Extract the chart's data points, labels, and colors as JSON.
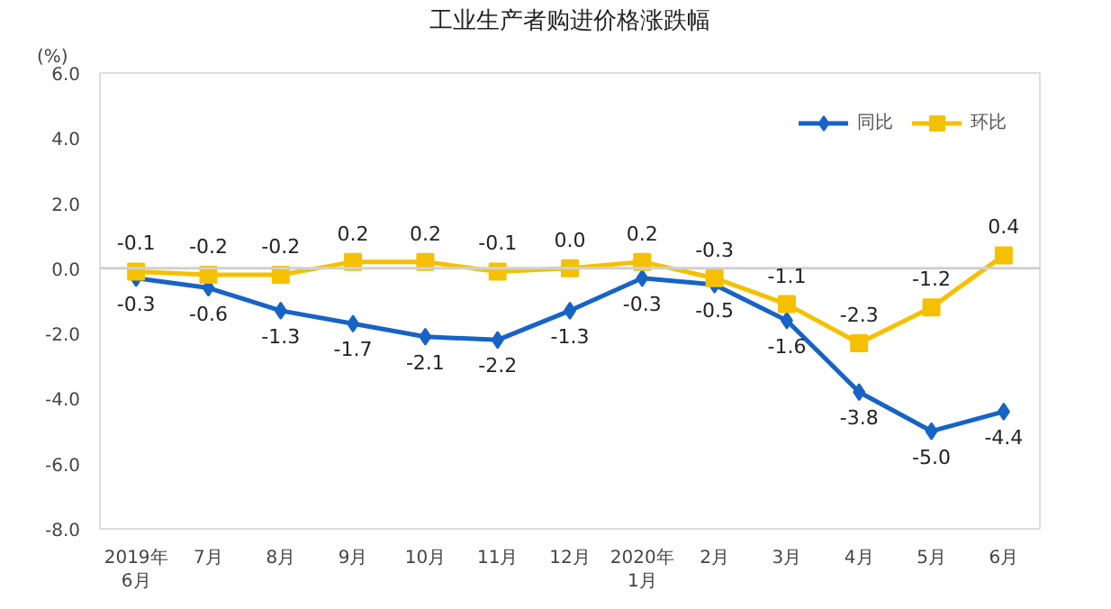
{
  "chart_data": {
    "type": "line",
    "title": "工业生产者购进价格涨跌幅",
    "ylabel": "(%)",
    "categories": [
      "2019年\n6月",
      "7月",
      "8月",
      "9月",
      "10月",
      "11月",
      "12月",
      "2020年\n1月",
      "2月",
      "3月",
      "4月",
      "5月",
      "6月"
    ],
    "series": [
      {
        "name": "同比",
        "color": "#1763c6",
        "marker": "diamond",
        "values": [
          -0.3,
          -0.6,
          -1.3,
          -1.7,
          -2.1,
          -2.2,
          -1.3,
          -0.3,
          -0.5,
          -1.6,
          -3.8,
          -5.0,
          -4.4
        ],
        "value_labels": [
          "-0.3",
          "-0.6",
          "-1.3",
          "-1.7",
          "-2.1",
          "-2.2",
          "-1.3",
          "-0.3",
          "-0.5",
          "-1.6",
          "-3.8",
          "-5.0",
          "-4.4"
        ]
      },
      {
        "name": "环比",
        "color": "#f5c000",
        "marker": "square",
        "values": [
          -0.1,
          -0.2,
          -0.2,
          0.2,
          0.2,
          -0.1,
          0.0,
          0.2,
          -0.3,
          -1.1,
          -2.3,
          -1.2,
          0.4
        ],
        "value_labels": [
          "-0.1",
          "-0.2",
          "-0.2",
          "0.2",
          "0.2",
          "-0.1",
          "0.0",
          "0.2",
          "-0.3",
          "-1.1",
          "-2.3",
          "-1.2",
          "0.4"
        ]
      }
    ],
    "ylim": [
      -8.0,
      6.0
    ],
    "yticks": [
      {
        "value": -8,
        "label": "-8.0"
      },
      {
        "value": -6,
        "label": "-6.0"
      },
      {
        "value": -4,
        "label": "-4.0"
      },
      {
        "value": -2,
        "label": "-2.0"
      },
      {
        "value": 0,
        "label": "0.0"
      },
      {
        "value": 2,
        "label": "2.0"
      },
      {
        "value": 4,
        "label": "4.0"
      },
      {
        "value": 6,
        "label": "6.0"
      }
    ],
    "ref_lines": [
      {
        "axis": "y",
        "value": 0,
        "color": "#d0d0d0"
      }
    ],
    "legend": "top right",
    "grid": false
  }
}
